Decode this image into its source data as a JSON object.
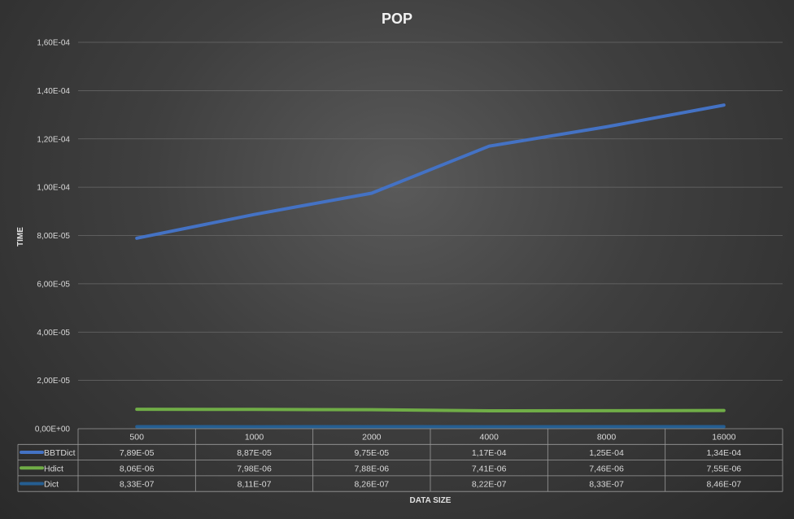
{
  "chart_data": {
    "type": "line",
    "title": "POP",
    "xlabel": "DATA SIZE",
    "ylabel": "TIME",
    "categories": [
      "500",
      "1000",
      "2000",
      "4000",
      "8000",
      "16000"
    ],
    "ylim": [
      0,
      0.00016
    ],
    "yticks": [
      0,
      2e-05,
      4e-05,
      6e-05,
      8e-05,
      0.0001,
      0.00012,
      0.00014,
      0.00016
    ],
    "ytick_labels": [
      "0,00E+00",
      "2,00E-05",
      "4,00E-05",
      "6,00E-05",
      "8,00E-05",
      "1,00E-04",
      "1,20E-04",
      "1,40E-04",
      "1,60E-04"
    ],
    "grid": true,
    "legend": "data-table",
    "series": [
      {
        "name": "BBTDict",
        "color": "#4472c4",
        "values": [
          7.89e-05,
          8.87e-05,
          9.75e-05,
          0.000117,
          0.000125,
          0.000134
        ],
        "labels": [
          "7,89E-05",
          "8,87E-05",
          "9,75E-05",
          "1,17E-04",
          "1,25E-04",
          "1,34E-04"
        ]
      },
      {
        "name": "Hdict",
        "color": "#70ad47",
        "values": [
          8.06e-06,
          7.98e-06,
          7.88e-06,
          7.41e-06,
          7.46e-06,
          7.55e-06
        ],
        "labels": [
          "8,06E-06",
          "7,98E-06",
          "7,88E-06",
          "7,41E-06",
          "7,46E-06",
          "7,55E-06"
        ]
      },
      {
        "name": "Dict",
        "color": "#255e91",
        "values": [
          8.33e-07,
          8.11e-07,
          8.26e-07,
          8.22e-07,
          8.33e-07,
          8.46e-07
        ],
        "labels": [
          "8,33E-07",
          "8,11E-07",
          "8,26E-07",
          "8,22E-07",
          "8,33E-07",
          "8,46E-07"
        ]
      }
    ]
  }
}
